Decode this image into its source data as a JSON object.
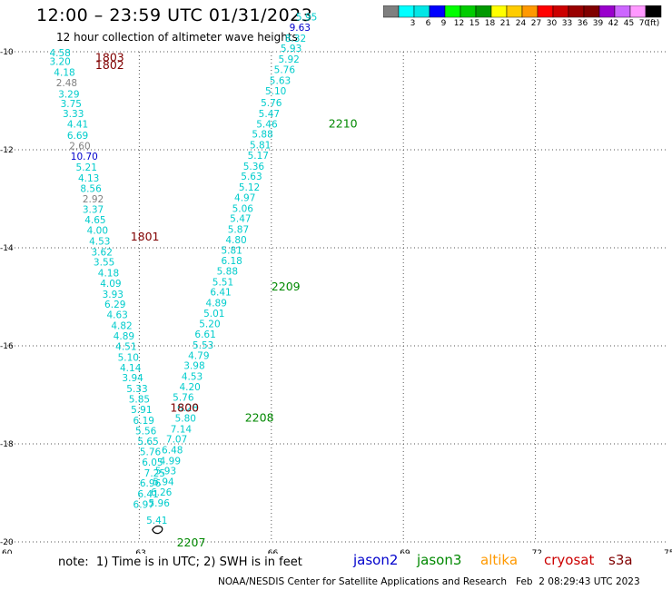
{
  "title": "12:00 – 23:59 UTC 01/31/2023",
  "subtitle": "12 hour collection of altimeter wave heights",
  "colorbar": {
    "colors": [
      "#7f7f7f",
      "#00ffff",
      "#00e6e6",
      "#0000ff",
      "#00ff00",
      "#00cc00",
      "#009900",
      "#ffff00",
      "#ffcc00",
      "#ff9900",
      "#ff0000",
      "#cc0000",
      "#990000",
      "#800000",
      "#9900cc",
      "#cc66ff",
      "#ff99ff",
      "#000000"
    ],
    "labels": [
      "",
      "3",
      "6",
      "9",
      "12",
      "15",
      "18",
      "21",
      "24",
      "27",
      "30",
      "33",
      "36",
      "39",
      "42",
      "45",
      "70",
      "(ft)"
    ]
  },
  "axes": {
    "x_ticks": [
      "60",
      "63",
      "66",
      "69",
      "72",
      "75"
    ],
    "y_ticks": [
      "-10",
      "-12",
      "-14",
      "-16",
      "-18",
      "-20"
    ]
  },
  "chart_data": {
    "type": "scatter",
    "xlim": [
      60,
      75
    ],
    "ylim": [
      -20,
      -10
    ],
    "x_ticks": [
      60,
      63,
      66,
      69,
      72,
      75
    ],
    "y_ticks": [
      -10,
      -12,
      -14,
      -16,
      -18,
      -20
    ],
    "grid": true,
    "label_color_key": {
      "gray": "0-3 ft",
      "cyan": "3-9 ft",
      "blue": "9-12 ft",
      "green": "12+ ft"
    },
    "tracks": [
      {
        "name": "jason2",
        "color": "#0000cc",
        "points": []
      },
      {
        "name": "jason3",
        "color": "#008800",
        "points": []
      },
      {
        "name": "altika",
        "color": "#ff9900",
        "points": []
      },
      {
        "name": "cryosat",
        "color": "#cc0000",
        "points": []
      },
      {
        "name": "s3a",
        "color": "#800000",
        "points": [
          {
            "x": 61.2,
            "y": -10.02,
            "v": "4.58",
            "c": "#00cccc"
          },
          {
            "x": 61.2,
            "y": -10.19,
            "v": "3.20",
            "c": "#00cccc"
          },
          {
            "x": 61.3,
            "y": -10.42,
            "v": "4.18",
            "c": "#00cccc"
          },
          {
            "x": 61.35,
            "y": -10.63,
            "v": "2.48",
            "c": "#808080"
          },
          {
            "x": 61.4,
            "y": -10.86,
            "v": "3.29",
            "c": "#00cccc"
          },
          {
            "x": 61.45,
            "y": -11.06,
            "v": "3.75",
            "c": "#00cccc"
          },
          {
            "x": 61.5,
            "y": -11.26,
            "v": "3.33",
            "c": "#00cccc"
          },
          {
            "x": 61.6,
            "y": -11.47,
            "v": "4.41",
            "c": "#00cccc"
          },
          {
            "x": 61.6,
            "y": -11.7,
            "v": "6.69",
            "c": "#00cccc"
          },
          {
            "x": 61.65,
            "y": -11.92,
            "v": "2.60",
            "c": "#808080"
          },
          {
            "x": 61.75,
            "y": -12.13,
            "v": "10.70",
            "c": "#0000cc"
          },
          {
            "x": 61.8,
            "y": -12.35,
            "v": "5.21",
            "c": "#00cccc"
          },
          {
            "x": 61.85,
            "y": -12.57,
            "v": "4.13",
            "c": "#00cccc"
          },
          {
            "x": 61.9,
            "y": -12.79,
            "v": "8.56",
            "c": "#00cccc"
          },
          {
            "x": 61.95,
            "y": -13.0,
            "v": "2.92",
            "c": "#808080"
          },
          {
            "x": 61.95,
            "y": -13.21,
            "v": "3.37",
            "c": "#00cccc"
          },
          {
            "x": 62.0,
            "y": -13.43,
            "v": "4.65",
            "c": "#00cccc"
          },
          {
            "x": 62.05,
            "y": -13.64,
            "v": "4.00",
            "c": "#00cccc"
          },
          {
            "x": 62.1,
            "y": -13.86,
            "v": "4.53",
            "c": "#00cccc"
          },
          {
            "x": 62.15,
            "y": -14.08,
            "v": "3.62",
            "c": "#00cccc"
          },
          {
            "x": 62.2,
            "y": -14.29,
            "v": "3.55",
            "c": "#00cccc"
          },
          {
            "x": 62.3,
            "y": -14.51,
            "v": "4.18",
            "c": "#00cccc"
          },
          {
            "x": 62.35,
            "y": -14.72,
            "v": "4.09",
            "c": "#00cccc"
          },
          {
            "x": 62.4,
            "y": -14.94,
            "v": "3.93",
            "c": "#00cccc"
          },
          {
            "x": 62.45,
            "y": -15.15,
            "v": "6.29",
            "c": "#00cccc"
          },
          {
            "x": 62.5,
            "y": -15.36,
            "v": "4.63",
            "c": "#00cccc"
          },
          {
            "x": 62.6,
            "y": -15.58,
            "v": "4.82",
            "c": "#00cccc"
          },
          {
            "x": 62.65,
            "y": -15.8,
            "v": "4.89",
            "c": "#00cccc"
          },
          {
            "x": 62.7,
            "y": -16.01,
            "v": "4.51",
            "c": "#00cccc"
          },
          {
            "x": 62.75,
            "y": -16.23,
            "v": "5.10",
            "c": "#00cccc"
          },
          {
            "x": 62.8,
            "y": -16.44,
            "v": "4.14",
            "c": "#00cccc"
          },
          {
            "x": 62.85,
            "y": -16.65,
            "v": "3.94",
            "c": "#00cccc"
          },
          {
            "x": 62.95,
            "y": -16.87,
            "v": "5.33",
            "c": "#00cccc"
          },
          {
            "x": 63.0,
            "y": -17.08,
            "v": "5.85",
            "c": "#00cccc"
          },
          {
            "x": 63.05,
            "y": -17.3,
            "v": "5.91",
            "c": "#00cccc"
          },
          {
            "x": 63.1,
            "y": -17.52,
            "v": "6.19",
            "c": "#00cccc"
          },
          {
            "x": 63.15,
            "y": -17.73,
            "v": "5.56",
            "c": "#00cccc"
          },
          {
            "x": 63.2,
            "y": -17.94,
            "v": "5.65",
            "c": "#00cccc"
          },
          {
            "x": 63.25,
            "y": -18.16,
            "v": "5.76",
            "c": "#00cccc"
          },
          {
            "x": 63.3,
            "y": -18.37,
            "v": "6.05",
            "c": "#00cccc"
          },
          {
            "x": 63.35,
            "y": -18.59,
            "v": "7.25",
            "c": "#00cccc"
          },
          {
            "x": 63.25,
            "y": -18.8,
            "v": "6.96",
            "c": "#00cccc"
          },
          {
            "x": 63.2,
            "y": -19.02,
            "v": "6.41",
            "c": "#00cccc"
          },
          {
            "x": 63.1,
            "y": -19.23,
            "v": "6.97",
            "c": "#00cccc"
          },
          {
            "x": 63.4,
            "y": -19.56,
            "v": "5.41",
            "c": "#00cccc"
          },
          {
            "x": 63.45,
            "y": -19.2,
            "v": "5.96",
            "c": "#00cccc"
          },
          {
            "x": 63.5,
            "y": -18.98,
            "v": "6.26",
            "c": "#00cccc"
          },
          {
            "x": 63.55,
            "y": -18.77,
            "v": "5.94",
            "c": "#00cccc"
          },
          {
            "x": 63.6,
            "y": -18.55,
            "v": "5.93",
            "c": "#00cccc"
          },
          {
            "x": 63.7,
            "y": -18.34,
            "v": "4.99",
            "c": "#00cccc"
          },
          {
            "x": 63.75,
            "y": -18.12,
            "v": "6.48",
            "c": "#00cccc"
          },
          {
            "x": 63.85,
            "y": -17.9,
            "v": "7.07",
            "c": "#00cccc"
          },
          {
            "x": 63.95,
            "y": -17.69,
            "v": "7.14",
            "c": "#00cccc"
          },
          {
            "x": 64.05,
            "y": -17.47,
            "v": "5.80",
            "c": "#00cccc"
          },
          {
            "x": 64.1,
            "y": -17.26,
            "v": "6.28",
            "c": "#00cccc"
          },
          {
            "x": 64.0,
            "y": -17.05,
            "v": "5.76",
            "c": "#00cccc"
          },
          {
            "x": 64.15,
            "y": -16.83,
            "v": "4.20",
            "c": "#00cccc"
          },
          {
            "x": 64.2,
            "y": -16.62,
            "v": "4.53",
            "c": "#00cccc"
          },
          {
            "x": 64.25,
            "y": -16.4,
            "v": "3.98",
            "c": "#00cccc"
          },
          {
            "x": 64.35,
            "y": -16.19,
            "v": "4.79",
            "c": "#00cccc"
          },
          {
            "x": 64.45,
            "y": -15.98,
            "v": "5.53",
            "c": "#00cccc"
          },
          {
            "x": 64.5,
            "y": -15.76,
            "v": "6.61",
            "c": "#00cccc"
          },
          {
            "x": 64.6,
            "y": -15.55,
            "v": "5.20",
            "c": "#00cccc"
          },
          {
            "x": 64.7,
            "y": -15.33,
            "v": "5.01",
            "c": "#00cccc"
          },
          {
            "x": 64.75,
            "y": -15.12,
            "v": "4.89",
            "c": "#00cccc"
          },
          {
            "x": 64.85,
            "y": -14.9,
            "v": "6.41",
            "c": "#00cccc"
          },
          {
            "x": 64.9,
            "y": -14.69,
            "v": "5.51",
            "c": "#00cccc"
          },
          {
            "x": 65.0,
            "y": -14.47,
            "v": "5.88",
            "c": "#00cccc"
          },
          {
            "x": 65.1,
            "y": -14.26,
            "v": "6.18",
            "c": "#00cccc"
          },
          {
            "x": 65.1,
            "y": -14.05,
            "v": "5.81",
            "c": "#00cccc"
          },
          {
            "x": 65.2,
            "y": -13.83,
            "v": "4.80",
            "c": "#00cccc"
          },
          {
            "x": 65.25,
            "y": -13.62,
            "v": "5.87",
            "c": "#00cccc"
          },
          {
            "x": 65.3,
            "y": -13.4,
            "v": "5.47",
            "c": "#00cccc"
          },
          {
            "x": 65.35,
            "y": -13.19,
            "v": "5.06",
            "c": "#00cccc"
          },
          {
            "x": 65.4,
            "y": -12.97,
            "v": "4.97",
            "c": "#00cccc"
          },
          {
            "x": 65.5,
            "y": -12.76,
            "v": "5.12",
            "c": "#00cccc"
          },
          {
            "x": 65.55,
            "y": -12.54,
            "v": "5.63",
            "c": "#00cccc"
          },
          {
            "x": 65.6,
            "y": -12.33,
            "v": "5.36",
            "c": "#00cccc"
          },
          {
            "x": 65.7,
            "y": -12.11,
            "v": "5.17",
            "c": "#00cccc"
          },
          {
            "x": 65.75,
            "y": -11.9,
            "v": "5.81",
            "c": "#00cccc"
          },
          {
            "x": 65.8,
            "y": -11.68,
            "v": "5.88",
            "c": "#00cccc"
          },
          {
            "x": 65.9,
            "y": -11.47,
            "v": "5.46",
            "c": "#00cccc"
          },
          {
            "x": 65.95,
            "y": -11.26,
            "v": "5.47",
            "c": "#00cccc"
          },
          {
            "x": 66.0,
            "y": -11.04,
            "v": "5.76",
            "c": "#00cccc"
          },
          {
            "x": 66.1,
            "y": -10.8,
            "v": "5.10",
            "c": "#00cccc"
          },
          {
            "x": 66.2,
            "y": -10.58,
            "v": "5.63",
            "c": "#00cccc"
          },
          {
            "x": 66.3,
            "y": -10.36,
            "v": "5.76",
            "c": "#00cccc"
          },
          {
            "x": 66.4,
            "y": -10.15,
            "v": "5.92",
            "c": "#00cccc"
          },
          {
            "x": 66.45,
            "y": -9.93,
            "v": "5.93",
            "c": "#00cccc"
          },
          {
            "x": 66.55,
            "y": -9.72,
            "v": "8.32",
            "c": "#00cccc"
          },
          {
            "x": 66.65,
            "y": -9.5,
            "v": "9.63",
            "c": "#0000cc"
          },
          {
            "x": 66.8,
            "y": -9.29,
            "v": "5.95",
            "c": "#00cccc"
          }
        ]
      }
    ],
    "time_labels": [
      {
        "x": 62.0,
        "y": -10.1,
        "t": "1803",
        "c": "#800000"
      },
      {
        "x": 62.0,
        "y": -10.26,
        "t": "1802",
        "c": "#800000"
      },
      {
        "x": 62.8,
        "y": -13.76,
        "t": "1801",
        "c": "#800000"
      },
      {
        "x": 63.7,
        "y": -17.25,
        "t": "1800",
        "c": "#800000"
      },
      {
        "x": 67.3,
        "y": -11.45,
        "t": "2210",
        "c": "#008800"
      },
      {
        "x": 66.0,
        "y": -14.78,
        "t": "2209",
        "c": "#008800"
      },
      {
        "x": 65.4,
        "y": -17.45,
        "t": "2208",
        "c": "#008800"
      },
      {
        "x": 63.85,
        "y": -20.0,
        "t": "2207",
        "c": "#008800"
      }
    ]
  },
  "note": "note:  1) Time is in UTC; 2) SWH is in feet",
  "legend": [
    {
      "name": "jason2",
      "color": "#0000cc"
    },
    {
      "name": "jason3",
      "color": "#008800"
    },
    {
      "name": "altika",
      "color": "#ff9900"
    },
    {
      "name": "cryosat",
      "color": "#cc0000"
    },
    {
      "name": "s3a",
      "color": "#800000"
    }
  ],
  "footer": "NOAA/NESDIS Center for Satellite Applications and Research   Feb  2 08:29:43 UTC 2023"
}
